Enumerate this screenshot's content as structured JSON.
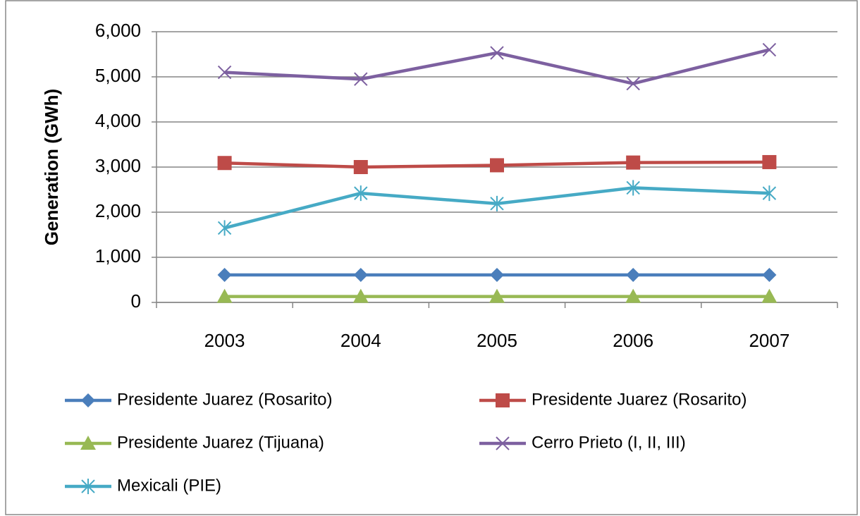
{
  "chart_data": {
    "type": "line",
    "y_label": "Generation (GWh)",
    "categories": [
      "2003",
      "2004",
      "2005",
      "2006",
      "2007"
    ],
    "series": [
      {
        "name": "Presidente Juarez (Rosarito)",
        "color": "#4a7ebb",
        "marker": "diamond",
        "values": [
          610,
          610,
          610,
          610,
          610
        ]
      },
      {
        "name": "Presidente Juarez (Rosarito)",
        "color": "#be4b48",
        "marker": "square",
        "values": [
          3090,
          3000,
          3040,
          3100,
          3110
        ]
      },
      {
        "name": "Presidente Juarez (Tijuana)",
        "color": "#98b954",
        "marker": "triangle",
        "values": [
          130,
          130,
          130,
          130,
          130
        ]
      },
      {
        "name": "Cerro Prieto (I, II, III)",
        "color": "#7d60a0",
        "marker": "x",
        "values": [
          5100,
          4950,
          5530,
          4850,
          5600
        ]
      },
      {
        "name": "Mexicali (PIE)",
        "color": "#46aac5",
        "marker": "star",
        "values": [
          1650,
          2420,
          2190,
          2540,
          2420
        ]
      }
    ],
    "ylim": [
      0,
      6000
    ],
    "yticks": [
      0,
      {
        "value": 1000,
        "label": "1,000"
      },
      {
        "value": 2000,
        "label": "2,000"
      },
      {
        "value": 3000,
        "label": "3,000"
      },
      {
        "value": 4000,
        "label": "4,000"
      },
      {
        "value": 5000,
        "label": "5,000"
      },
      {
        "value": 6000,
        "label": "6,000"
      }
    ],
    "grid": true
  }
}
